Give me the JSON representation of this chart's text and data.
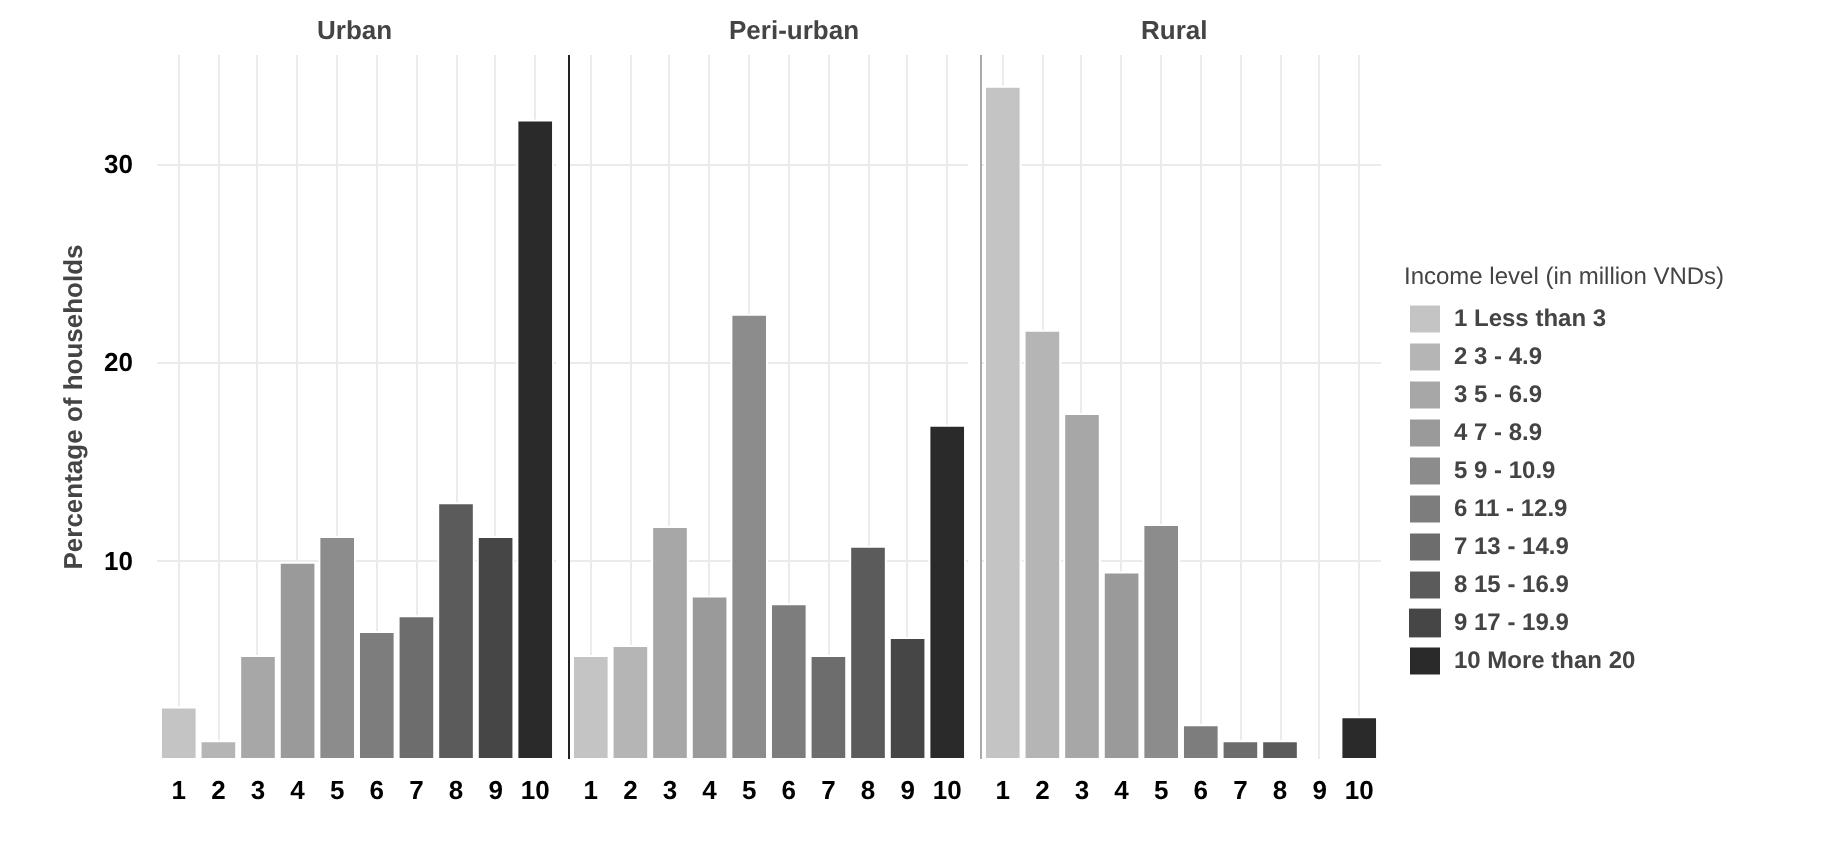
{
  "chart_data": [
    {
      "type": "bar",
      "title": "Urban",
      "ylabel": "Percentage of households",
      "categories": [
        "1",
        "2",
        "3",
        "4",
        "5",
        "6",
        "7",
        "8",
        "9",
        "10"
      ],
      "ylim": [
        0,
        35.5
      ],
      "yticks": [
        10,
        20,
        30
      ],
      "grid": true,
      "series": [
        {
          "color": "#c4c4c4",
          "values": [
            2.6,
            null,
            null,
            null,
            null,
            null,
            null,
            null,
            null,
            null
          ]
        },
        {
          "color": "#b5b5b5",
          "values": [
            null,
            0.9,
            null,
            null,
            null,
            null,
            null,
            null,
            null,
            null
          ]
        },
        {
          "color": "#a7a7a7",
          "values": [
            null,
            null,
            5.2,
            null,
            null,
            null,
            null,
            null,
            null,
            null
          ]
        },
        {
          "color": "#9a9a9a",
          "values": [
            null,
            null,
            null,
            9.9,
            null,
            null,
            null,
            null,
            null,
            null
          ]
        },
        {
          "color": "#8c8c8c",
          "values": [
            null,
            null,
            null,
            null,
            11.2,
            null,
            null,
            null,
            null,
            null
          ]
        },
        {
          "color": "#7d7d7d",
          "values": [
            null,
            null,
            null,
            null,
            null,
            6.4,
            null,
            null,
            null,
            null
          ]
        },
        {
          "color": "#6d6d6d",
          "values": [
            null,
            null,
            null,
            null,
            null,
            null,
            7.2,
            null,
            null,
            null
          ]
        },
        {
          "color": "#5b5b5b",
          "values": [
            null,
            null,
            null,
            null,
            null,
            null,
            null,
            12.9,
            null,
            null
          ]
        },
        {
          "color": "#464646",
          "values": [
            null,
            null,
            null,
            null,
            null,
            null,
            null,
            null,
            11.2,
            null
          ]
        },
        {
          "color": "#2a2a2a",
          "values": [
            null,
            null,
            null,
            null,
            null,
            null,
            null,
            null,
            null,
            32.2
          ]
        }
      ]
    },
    {
      "type": "bar",
      "title": "Peri-urban",
      "categories": [
        "1",
        "2",
        "3",
        "4",
        "5",
        "6",
        "7",
        "8",
        "9",
        "10"
      ],
      "ylim": [
        0,
        35.5
      ],
      "yticks": [
        10,
        20,
        30
      ],
      "grid": true,
      "tick_labels": "x",
      "series": [
        {
          "color": "#c4c4c4",
          "values": [
            5.2,
            null,
            null,
            null,
            null,
            null,
            null,
            null,
            null,
            null
          ]
        },
        {
          "color": "#b5b5b5",
          "values": [
            null,
            5.7,
            null,
            null,
            null,
            null,
            null,
            null,
            null,
            null
          ]
        },
        {
          "color": "#a7a7a7",
          "values": [
            null,
            null,
            11.7,
            null,
            null,
            null,
            null,
            null,
            null,
            null
          ]
        },
        {
          "color": "#9a9a9a",
          "values": [
            null,
            null,
            null,
            8.2,
            null,
            null,
            null,
            null,
            null,
            null
          ]
        },
        {
          "color": "#8c8c8c",
          "values": [
            null,
            null,
            null,
            null,
            22.4,
            null,
            null,
            null,
            null,
            null
          ]
        },
        {
          "color": "#7d7d7d",
          "values": [
            null,
            null,
            null,
            null,
            null,
            7.8,
            null,
            null,
            null,
            null
          ]
        },
        {
          "color": "#6d6d6d",
          "values": [
            null,
            null,
            null,
            null,
            null,
            null,
            5.2,
            null,
            null,
            null
          ]
        },
        {
          "color": "#5b5b5b",
          "values": [
            null,
            null,
            null,
            null,
            null,
            null,
            null,
            10.7,
            null,
            null
          ]
        },
        {
          "color": "#464646",
          "values": [
            null,
            null,
            null,
            null,
            null,
            null,
            null,
            null,
            6.1,
            null
          ]
        },
        {
          "color": "#2a2a2a",
          "values": [
            null,
            null,
            null,
            null,
            null,
            null,
            null,
            null,
            null,
            16.8
          ]
        }
      ]
    },
    {
      "type": "bar",
      "title": "Rural",
      "legend_title": "Income level (in million VNDs)",
      "categories": [
        "1",
        "2",
        "3",
        "4",
        "5",
        "6",
        "7",
        "8",
        "9",
        "10"
      ],
      "ylim": [
        0,
        35.5
      ],
      "yticks": [
        10,
        20,
        30
      ],
      "grid": true,
      "legend": "right",
      "tick_labels": "x",
      "series": [
        {
          "name": "1 Less than 3",
          "color": "#c4c4c4",
          "values": [
            33.9,
            null,
            null,
            null,
            null,
            null,
            null,
            null,
            null,
            null
          ]
        },
        {
          "name": "2 3 - 4.9",
          "color": "#b5b5b5",
          "values": [
            null,
            21.6,
            null,
            null,
            null,
            null,
            null,
            null,
            null,
            null
          ]
        },
        {
          "name": "3 5 - 6.9",
          "color": "#a7a7a7",
          "values": [
            null,
            null,
            17.4,
            null,
            null,
            null,
            null,
            null,
            null,
            null
          ]
        },
        {
          "name": "4 7 - 8.9",
          "color": "#9a9a9a",
          "values": [
            null,
            null,
            null,
            9.4,
            null,
            null,
            null,
            null,
            null,
            null
          ]
        },
        {
          "name": "5 9 - 10.9",
          "color": "#8c8c8c",
          "values": [
            null,
            null,
            null,
            null,
            11.8,
            null,
            null,
            null,
            null,
            null
          ]
        },
        {
          "name": "6 11 - 12.9",
          "color": "#7d7d7d",
          "values": [
            null,
            null,
            null,
            null,
            null,
            1.7,
            null,
            null,
            null,
            null
          ]
        },
        {
          "name": "7 13 - 14.9",
          "color": "#6d6d6d",
          "values": [
            null,
            null,
            null,
            null,
            null,
            null,
            0.9,
            null,
            null,
            null
          ]
        },
        {
          "name": "8 15 - 16.9",
          "color": "#5b5b5b",
          "values": [
            null,
            null,
            null,
            null,
            null,
            null,
            null,
            0.9,
            null,
            null
          ]
        },
        {
          "name": "9 17 - 19.9",
          "color": "#464646",
          "values": [
            null,
            null,
            null,
            null,
            null,
            null,
            null,
            null,
            0,
            null
          ]
        },
        {
          "name": "10 More than 20",
          "color": "#2a2a2a",
          "values": [
            null,
            null,
            null,
            null,
            null,
            null,
            null,
            null,
            null,
            2.1
          ]
        }
      ]
    }
  ]
}
